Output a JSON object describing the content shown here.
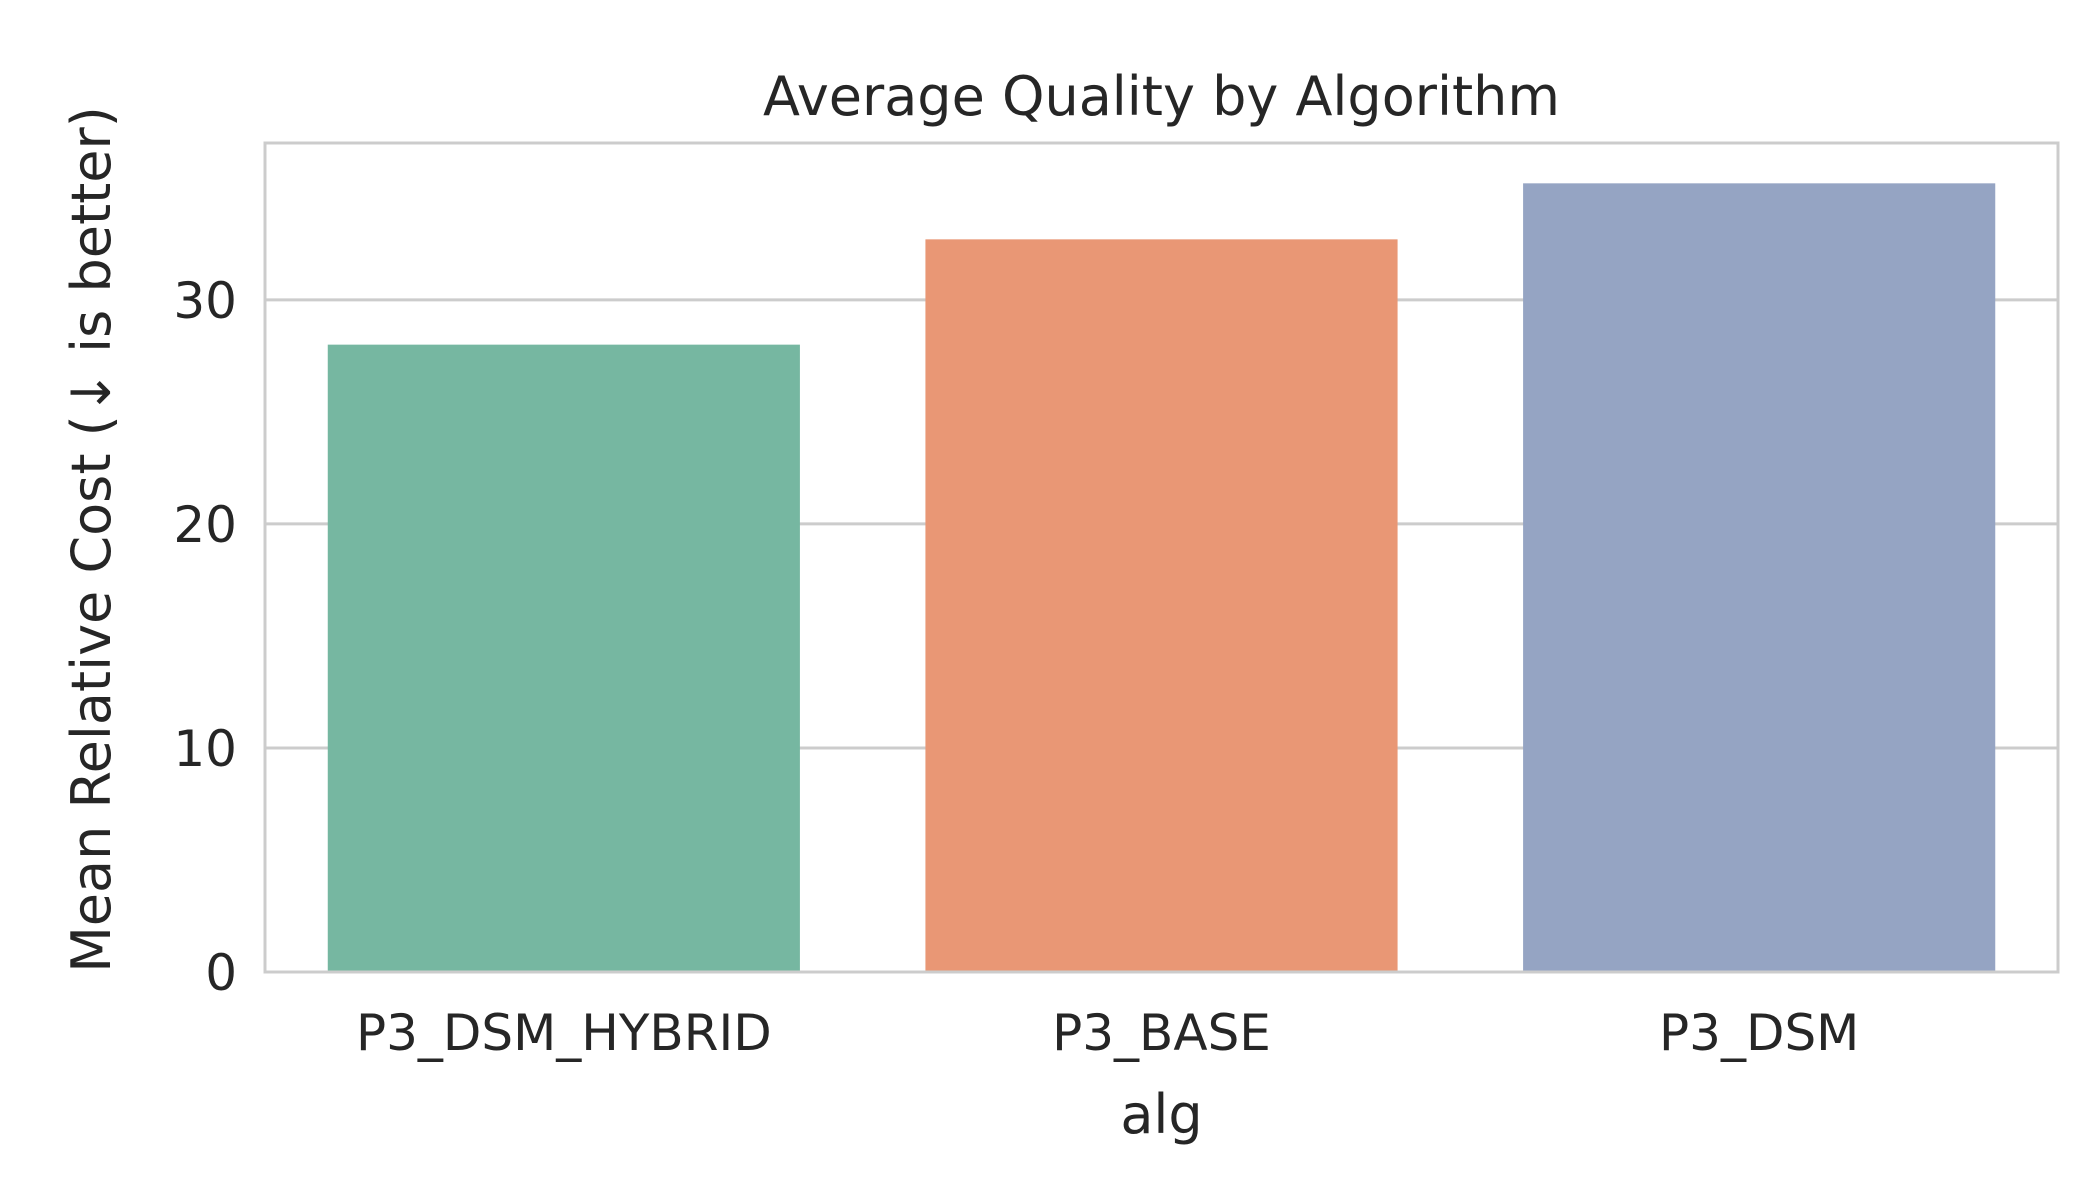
{
  "chart_data": {
    "type": "bar",
    "title": "Average Quality by Algorithm",
    "xlabel": "alg",
    "ylabel": "Mean Relative Cost (↓ is better)",
    "categories": [
      "P3_DSM_HYBRID",
      "P3_BASE",
      "P3_DSM"
    ],
    "values": [
      28.0,
      32.7,
      35.2
    ],
    "colors": [
      "#76b7a1",
      "#e99775",
      "#95a4c3"
    ],
    "ylim": [
      0,
      37
    ],
    "yticks": [
      0,
      10,
      20,
      30
    ],
    "grid": true,
    "grid_axis": "y",
    "legend": "none"
  }
}
